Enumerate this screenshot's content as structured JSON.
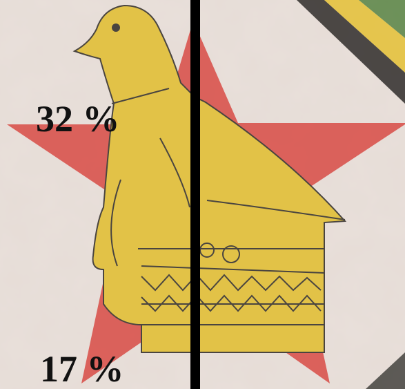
{
  "labels": {
    "top": "32 %",
    "bottom": "17 %"
  }
}
